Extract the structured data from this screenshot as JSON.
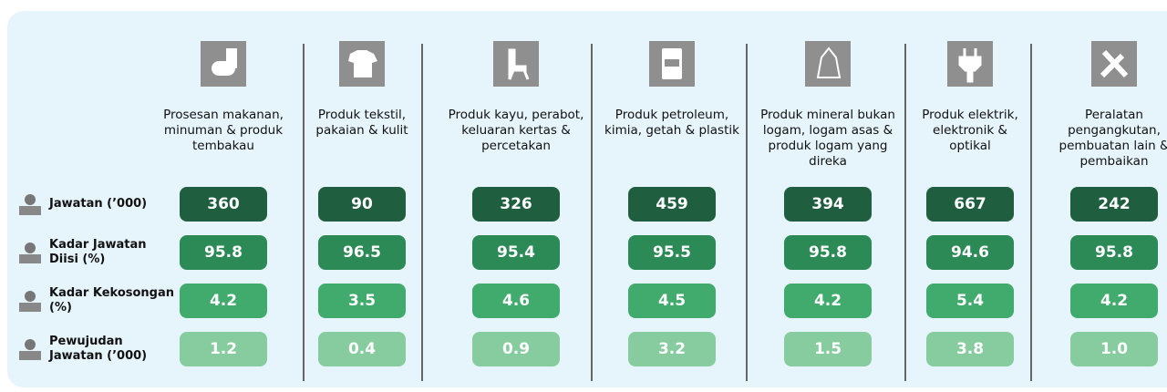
{
  "columns": [
    {
      "label": "Prosesan makanan, minuman & produk tembakau"
    },
    {
      "label": "Produk tekstil, pakaian & kulit"
    },
    {
      "label": "Produk kayu, perabot, keluaran kertas & percetakan"
    },
    {
      "label": "Produk petroleum, kimia, getah & plastik"
    },
    {
      "label": "Produk mineral bukan logam, logam asas & produk logam yang direka"
    },
    {
      "label": "Produk elektrik, elektronik & optikal"
    },
    {
      "label": "Peralatan pengangkutan, pembuatan lain & pembaikan"
    }
  ],
  "row_labels": [
    "Jawatan (’000)",
    "Kadar Jawatan Diisi (%)",
    "Kadar Kekosongan (%)",
    "Pewujudan Jawatan (’000)"
  ],
  "rows": [
    [
      "360",
      "90",
      "326",
      "459",
      "394",
      "667",
      "242"
    ],
    [
      "95.8",
      "96.5",
      "95.4",
      "95.5",
      "95.8",
      "94.6",
      "95.8"
    ],
    [
      "4.2",
      "3.5",
      "4.6",
      "4.5",
      "4.2",
      "5.4",
      "4.2"
    ],
    [
      "1.2",
      "0.4",
      "0.9",
      "3.2",
      "1.5",
      "3.8",
      "1.0"
    ]
  ]
}
